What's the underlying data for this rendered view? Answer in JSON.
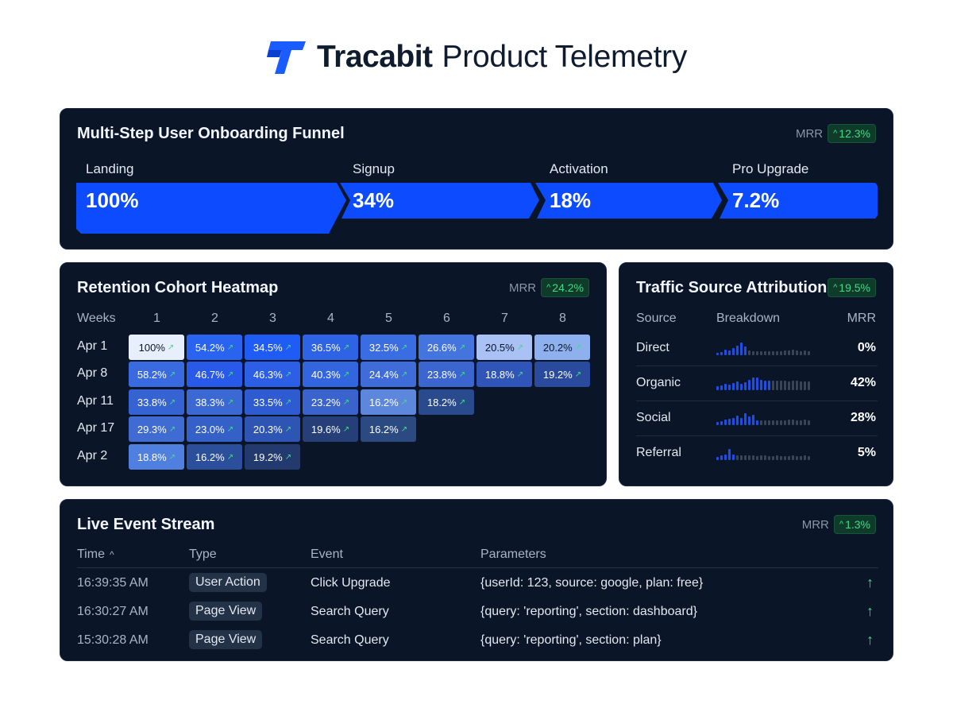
{
  "header": {
    "brand": "Tracabit",
    "title_rest": "Product Telemetry",
    "logo_icon": "tracabit-logo-icon",
    "logo_color": "#1a5cff"
  },
  "funnel": {
    "title": "Multi-Step User Onboarding Funnel",
    "mrr_label": "MRR",
    "mrr_change": "12.3%",
    "steps": [
      {
        "label": "Landing",
        "value": "100%"
      },
      {
        "label": "Signup",
        "value": "34%"
      },
      {
        "label": "Activation",
        "value": "18%"
      },
      {
        "label": "Pro Upgrade",
        "value": "7.2%"
      }
    ],
    "color": "#0d4bff"
  },
  "heatmap": {
    "title": "Retention Cohort Heatmap",
    "mrr_label": "MRR",
    "mrr_change": "24.2%",
    "corner": "Weeks",
    "weeks": [
      "1",
      "2",
      "3",
      "4",
      "5",
      "6",
      "7",
      "8"
    ],
    "rows": [
      {
        "cohort": "Apr 1",
        "cells": [
          "100%",
          "54.2%",
          "34.5%",
          "36.5%",
          "32.5%",
          "26.6%",
          "20.5%",
          "20.2%"
        ]
      },
      {
        "cohort": "Apr 8",
        "cells": [
          "58.2%",
          "46.7%",
          "46.3%",
          "40.3%",
          "24.4%",
          "23.8%",
          "18.8%",
          "19.2%"
        ]
      },
      {
        "cohort": "Apr 11",
        "cells": [
          "33.8%",
          "38.3%",
          "33.5%",
          "23.2%",
          "16.2%",
          "18.2%"
        ]
      },
      {
        "cohort": "Apr 17",
        "cells": [
          "29.3%",
          "23.0%",
          "20.3%",
          "19.6%",
          "16.2%"
        ]
      },
      {
        "cohort": "Apr 2",
        "cells": [
          "18.8%",
          "16.2%",
          "19.2%"
        ]
      }
    ]
  },
  "traffic": {
    "title": "Traffic Source Attribution",
    "change": "19.5%",
    "headers": {
      "source": "Source",
      "breakdown": "Breakdown",
      "mrr": "MRR"
    },
    "rows": [
      {
        "source": "Direct",
        "pct": "0%"
      },
      {
        "source": "Organic",
        "pct": "42%"
      },
      {
        "source": "Social",
        "pct": "28%"
      },
      {
        "source": "Referral",
        "pct": "5%"
      }
    ]
  },
  "events": {
    "title": "Live Event Stream",
    "mrr_label": "MRR",
    "mrr_change": "1.3%",
    "headers": {
      "time": "Time",
      "type": "Type",
      "event": "Event",
      "params": "Parameters"
    },
    "sort_icon": "caret-up-icon",
    "rows": [
      {
        "time": "16:39:35 AM",
        "type": "User Action",
        "event": "Click Upgrade",
        "params": "{userId: 123, source: google, plan: free}"
      },
      {
        "time": "16:30:27 AM",
        "type": "Page View",
        "event": "Search Query",
        "params": "{query: 'reporting', section: dashboard}"
      },
      {
        "time": "15:30:28 AM",
        "type": "Page View",
        "event": "Search Query",
        "params": "{query: 'reporting', section: plan}"
      }
    ]
  }
}
